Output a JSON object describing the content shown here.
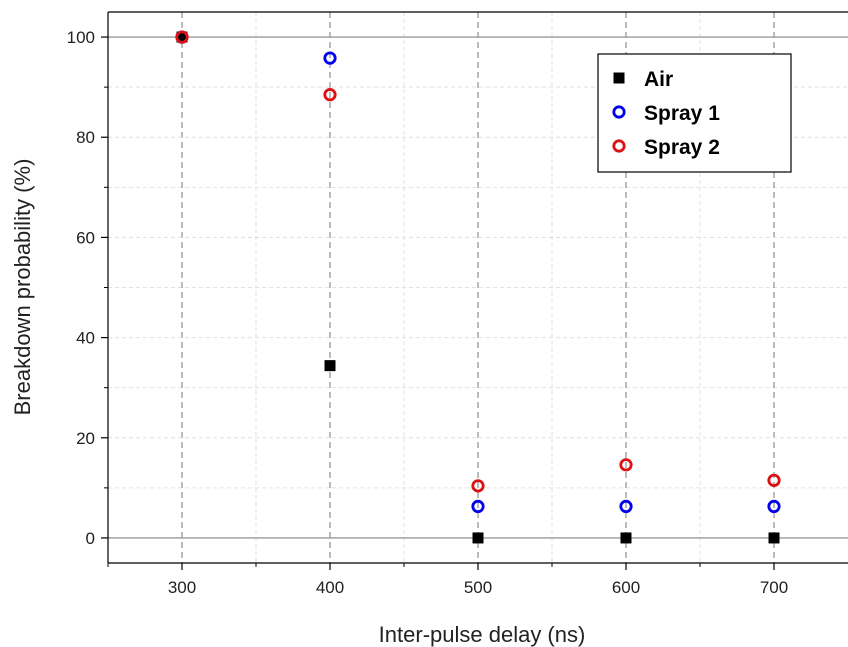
{
  "chart_data": {
    "type": "scatter",
    "title": "",
    "xlabel": "Inter-pulse delay (ns)",
    "ylabel": "Breakdown probability (%)",
    "xlim": [
      250,
      750
    ],
    "ylim": [
      -5,
      105
    ],
    "xticks": [
      300,
      400,
      500,
      600,
      700
    ],
    "yticks": [
      0,
      20,
      40,
      60,
      80,
      100
    ],
    "x_tick_labels": [
      "300",
      "400",
      "500",
      "600",
      "700"
    ],
    "y_tick_labels": [
      "0",
      "20",
      "40",
      "60",
      "80",
      "100"
    ],
    "grid": true,
    "legend_position": "top-right",
    "series": [
      {
        "name": "Air",
        "marker": "filled-square",
        "color": "#000000",
        "x": [
          300,
          400,
          500,
          600,
          700
        ],
        "y": [
          100,
          34.4,
          0,
          0,
          0
        ]
      },
      {
        "name": "Spray 1",
        "marker": "open-circle",
        "color": "#0000ee",
        "x": [
          300,
          400,
          500,
          600,
          700
        ],
        "y": [
          100,
          95.8,
          6.3,
          6.3,
          6.3
        ]
      },
      {
        "name": "Spray 2",
        "marker": "open-circle",
        "color": "#dd1111",
        "x": [
          300,
          400,
          500,
          600,
          700
        ],
        "y": [
          100,
          88.5,
          10.4,
          14.6,
          11.5
        ]
      }
    ]
  }
}
